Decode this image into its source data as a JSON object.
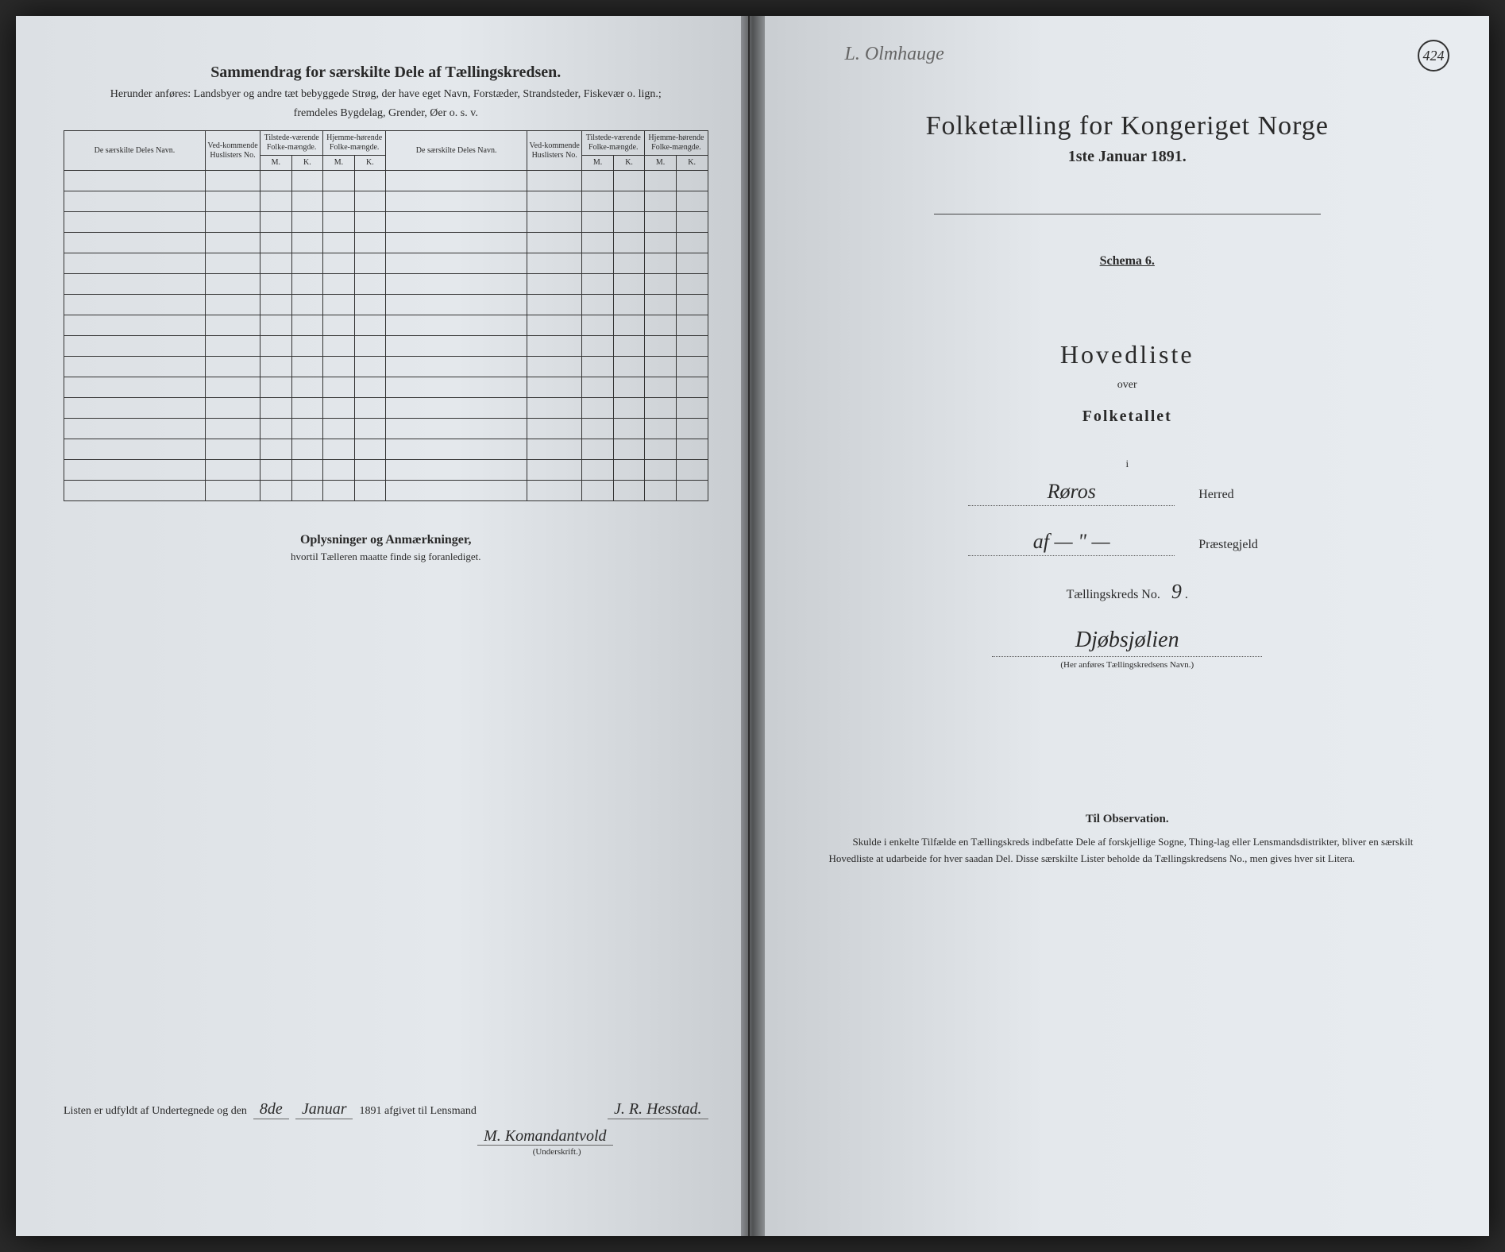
{
  "colors": {
    "page_bg": "#e4e8ec",
    "text": "#2a2a2a",
    "border": "#333333",
    "handwriting": "#2a2a2a"
  },
  "left": {
    "title": "Sammendrag for særskilte Dele af Tællingskredsen.",
    "subtitle1": "Herunder anføres: Landsbyer og andre tæt bebyggede Strøg, der have eget Navn, Forstæder, Strandsteder, Fiskevær o. lign.;",
    "subtitle2": "fremdeles Bygdelag, Grender, Øer o. s. v.",
    "headers": {
      "dele": "De særskilte Deles Navn.",
      "ved": "Ved-kommende Huslisters No.",
      "tilstede": "Tilstede-værende Folke-mængde.",
      "hjemme": "Hjemme-hørende Folke-mængde.",
      "m": "M.",
      "k": "K."
    },
    "oplysninger": "Oplysninger og Anmærkninger,",
    "oplysninger_sub": "hvortil Tælleren maatte finde sig foranlediget.",
    "sign_prefix": "Listen er udfyldt af Undertegnede og den",
    "sign_day": "8de",
    "sign_month": "Januar",
    "sign_year": "1891 afgivet til Lensmand",
    "signature1": "J. R. Hesstad.",
    "signature2": "M. Komandantvold",
    "underskrift": "(Underskrift.)"
  },
  "right": {
    "page_number": "424",
    "top_handwriting": "L. Olmhauge",
    "main_title": "Folketælling for Kongeriget Norge",
    "date": "1ste Januar 1891.",
    "schema": "Schema 6.",
    "hovedliste": "Hovedliste",
    "over": "over",
    "folketallet": "Folketallet",
    "i": "i",
    "herred_value": "Røros",
    "herred_label": "Herred",
    "praest_value": "af  — \" —",
    "praest_label": "Præstegjeld",
    "tkreds_label": "Tællingskreds No.",
    "tkreds_no": "9",
    "kreds_name": "Djøbsjølien",
    "kreds_note": "(Her anføres Tællingskredsens Navn.)",
    "obs_title": "Til Observation.",
    "obs_text": "Skulde i enkelte Tilfælde en Tællingskreds indbefatte Dele af forskjellige Sogne, Thing-lag eller Lensmandsdistrikter, bliver en særskilt Hovedliste at udarbeide for hver saadan Del. Disse særskilte Lister beholde da Tællingskredsens No., men gives hver sit Litera."
  },
  "table": {
    "row_count": 16
  }
}
